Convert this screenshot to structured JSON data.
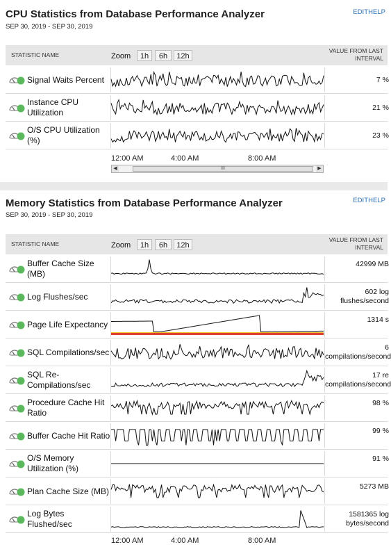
{
  "cpu": {
    "title": "CPU Statistics from Database Performance Analyzer",
    "date_range": "SEP 30, 2019 - SEP 30, 2019",
    "edit": "EDIT",
    "help": "HELP",
    "header_stat": "STATISTIC NAME",
    "header_value_1": "VALUE FROM LAST",
    "header_value_2": "INTERVAL",
    "zoom": "Zoom",
    "zoom_1h": "1h",
    "zoom_6h": "6h",
    "zoom_12h": "12h",
    "time_labels": [
      "12:00 AM",
      "4:00 AM",
      "8:00 AM"
    ],
    "scroll_thumb": "III",
    "rows": [
      {
        "name": "Signal Waits Percent",
        "value": "7 %"
      },
      {
        "name": "Instance CPU Utilization",
        "value": "21 %"
      },
      {
        "name": "O/S CPU Utilization (%)",
        "value": "23 %"
      }
    ]
  },
  "memory": {
    "title": "Memory Statistics from Database Performance Analyzer",
    "date_range": "SEP 30, 2019 - SEP 30, 2019",
    "edit": "EDIT",
    "help": "HELP",
    "header_stat": "STATISTIC NAME",
    "header_value_1": "VALUE FROM LAST",
    "header_value_2": "INTERVAL",
    "zoom": "Zoom",
    "zoom_1h": "1h",
    "zoom_6h": "6h",
    "zoom_12h": "12h",
    "time_labels": [
      "12:00 AM",
      "4:00 AM",
      "8:00 AM"
    ],
    "rows": [
      {
        "name": "Buffer Cache Size (MB)",
        "value1": "42999 MB",
        "value2": ""
      },
      {
        "name": "Log Flushes/sec",
        "value1": "602 log",
        "value2": "flushes/second"
      },
      {
        "name": "Page Life Expectancy",
        "value1": "1314 s",
        "value2": ""
      },
      {
        "name": "SQL Compilations/sec",
        "value1": "6",
        "value2": "compilations/second"
      },
      {
        "name": "SQL Re-Compilations/sec",
        "value1": "17 re",
        "value2": "compilations/second"
      },
      {
        "name": "Procedure Cache Hit Ratio",
        "value1": "98 %",
        "value2": ""
      },
      {
        "name": "Buffer Cache Hit Ratio",
        "value1": "99 %",
        "value2": ""
      },
      {
        "name": "O/S Memory Utilization (%)",
        "value1": "91 %",
        "value2": ""
      },
      {
        "name": "Plan Cache Size (MB)",
        "value1": "5273 MB",
        "value2": ""
      },
      {
        "name": "Log Bytes Flushed/sec",
        "value1": "1581365 log",
        "value2": "bytes/second"
      }
    ]
  },
  "colors": {
    "status_ok": "#5cb85c",
    "link": "#2a6fb5",
    "threshold_red": "#e0412f",
    "threshold_yellow": "#e8c12c"
  },
  "icons": {
    "row_icon": "gauge-icon",
    "status": "status-ok-dot-icon"
  }
}
